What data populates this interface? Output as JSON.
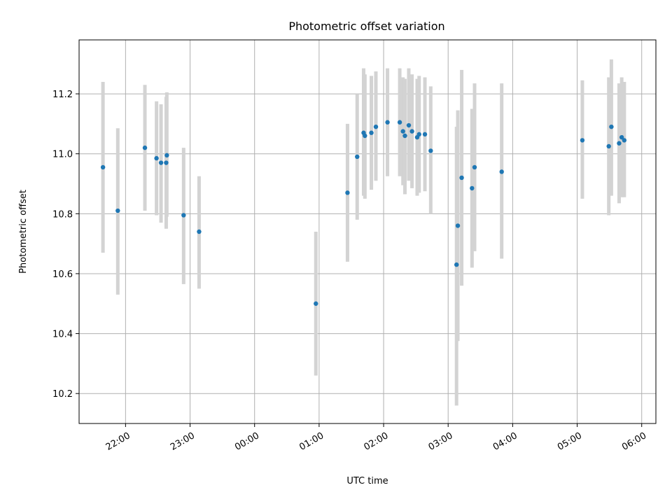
{
  "chart_data": {
    "type": "scatter",
    "title": "Photometric offset variation",
    "xlabel": "UTC time",
    "ylabel": "Photometric offset",
    "x_unit": "hours",
    "xlim": [
      21.28,
      30.22
    ],
    "ylim": [
      10.1,
      11.38
    ],
    "x_ticks": [
      {
        "value": 22,
        "label": "22:00"
      },
      {
        "value": 23,
        "label": "23:00"
      },
      {
        "value": 24,
        "label": "00:00"
      },
      {
        "value": 25,
        "label": "01:00"
      },
      {
        "value": 26,
        "label": "02:00"
      },
      {
        "value": 27,
        "label": "03:00"
      },
      {
        "value": 28,
        "label": "04:00"
      },
      {
        "value": 29,
        "label": "05:00"
      },
      {
        "value": 30,
        "label": "06:00"
      }
    ],
    "y_ticks": [
      {
        "value": 10.2,
        "label": "10.2"
      },
      {
        "value": 10.4,
        "label": "10.4"
      },
      {
        "value": 10.6,
        "label": "10.6"
      },
      {
        "value": 10.8,
        "label": "10.8"
      },
      {
        "value": 11.0,
        "label": "11.0"
      },
      {
        "value": 11.2,
        "label": "11.2"
      }
    ],
    "grid": true,
    "marker_color": "#1f77b4",
    "errorbar_color": "#d3d3d3",
    "points": [
      {
        "x": 21.65,
        "y": 10.955,
        "lo": 10.67,
        "hi": 11.24
      },
      {
        "x": 21.88,
        "y": 10.81,
        "lo": 10.53,
        "hi": 11.085
      },
      {
        "x": 22.3,
        "y": 11.02,
        "lo": 10.81,
        "hi": 11.23
      },
      {
        "x": 22.48,
        "y": 10.985,
        "lo": 10.795,
        "hi": 11.175
      },
      {
        "x": 22.55,
        "y": 10.97,
        "lo": 10.77,
        "hi": 11.165
      },
      {
        "x": 22.63,
        "y": 10.97,
        "lo": 10.75,
        "hi": 11.19
      },
      {
        "x": 22.64,
        "y": 10.995,
        "lo": 10.79,
        "hi": 11.205
      },
      {
        "x": 22.9,
        "y": 10.795,
        "lo": 10.565,
        "hi": 11.02
      },
      {
        "x": 23.14,
        "y": 10.74,
        "lo": 10.55,
        "hi": 10.925
      },
      {
        "x": 24.95,
        "y": 10.5,
        "lo": 10.26,
        "hi": 10.74
      },
      {
        "x": 25.44,
        "y": 10.87,
        "lo": 10.64,
        "hi": 11.1
      },
      {
        "x": 25.59,
        "y": 10.99,
        "lo": 10.78,
        "hi": 11.2
      },
      {
        "x": 25.69,
        "y": 11.07,
        "lo": 10.86,
        "hi": 11.285
      },
      {
        "x": 25.71,
        "y": 11.06,
        "lo": 10.85,
        "hi": 11.265
      },
      {
        "x": 25.81,
        "y": 11.07,
        "lo": 10.88,
        "hi": 11.26
      },
      {
        "x": 25.88,
        "y": 11.09,
        "lo": 10.91,
        "hi": 11.275
      },
      {
        "x": 26.06,
        "y": 11.105,
        "lo": 10.925,
        "hi": 11.285
      },
      {
        "x": 26.25,
        "y": 11.105,
        "lo": 10.925,
        "hi": 11.285
      },
      {
        "x": 26.3,
        "y": 11.075,
        "lo": 10.895,
        "hi": 11.255
      },
      {
        "x": 26.33,
        "y": 11.06,
        "lo": 10.865,
        "hi": 11.25
      },
      {
        "x": 26.39,
        "y": 11.095,
        "lo": 10.91,
        "hi": 11.285
      },
      {
        "x": 26.44,
        "y": 11.075,
        "lo": 10.885,
        "hi": 11.265
      },
      {
        "x": 26.52,
        "y": 11.055,
        "lo": 10.86,
        "hi": 11.25
      },
      {
        "x": 26.55,
        "y": 11.065,
        "lo": 10.87,
        "hi": 11.26
      },
      {
        "x": 26.64,
        "y": 11.065,
        "lo": 10.875,
        "hi": 11.255
      },
      {
        "x": 26.73,
        "y": 11.01,
        "lo": 10.8,
        "hi": 11.225
      },
      {
        "x": 27.13,
        "y": 10.63,
        "lo": 10.16,
        "hi": 11.09
      },
      {
        "x": 27.15,
        "y": 10.76,
        "lo": 10.375,
        "hi": 11.145
      },
      {
        "x": 27.21,
        "y": 10.92,
        "lo": 10.56,
        "hi": 11.28
      },
      {
        "x": 27.37,
        "y": 10.885,
        "lo": 10.62,
        "hi": 11.15
      },
      {
        "x": 27.41,
        "y": 10.955,
        "lo": 10.675,
        "hi": 11.235
      },
      {
        "x": 27.83,
        "y": 10.94,
        "lo": 10.65,
        "hi": 11.235
      },
      {
        "x": 29.08,
        "y": 11.045,
        "lo": 10.85,
        "hi": 11.245
      },
      {
        "x": 29.49,
        "y": 11.025,
        "lo": 10.795,
        "hi": 11.255
      },
      {
        "x": 29.53,
        "y": 11.09,
        "lo": 10.86,
        "hi": 11.315
      },
      {
        "x": 29.65,
        "y": 11.035,
        "lo": 10.835,
        "hi": 11.235
      },
      {
        "x": 29.69,
        "y": 11.055,
        "lo": 10.855,
        "hi": 11.255
      },
      {
        "x": 29.73,
        "y": 11.045,
        "lo": 10.855,
        "hi": 11.24
      }
    ]
  }
}
